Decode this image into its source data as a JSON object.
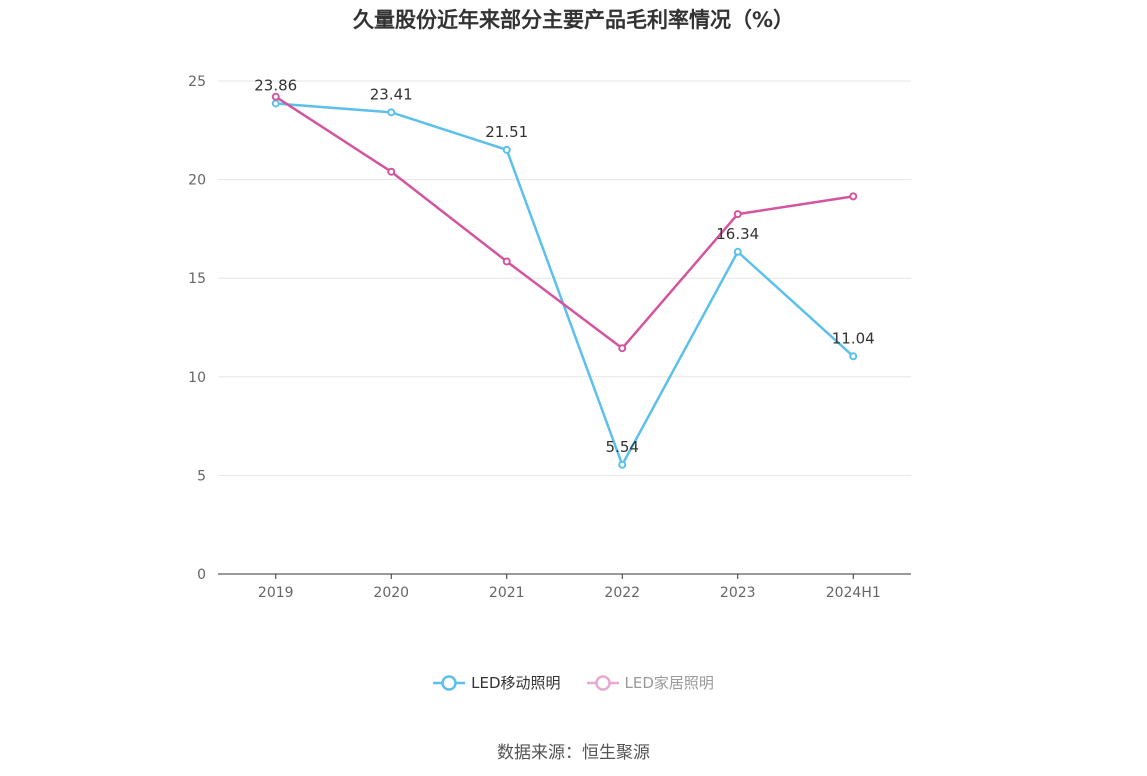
{
  "title": "久量股份近年来部分主要产品毛利率情况（%）",
  "source": "数据来源：恒生聚源",
  "colors": {
    "series1": "#5bc0eb",
    "series2": "#d4559f",
    "grid": "#e6e6e6",
    "axis": "#333333",
    "tick": "#666666"
  },
  "chart_data": {
    "type": "line",
    "title": "久量股份近年来部分主要产品毛利率情况（%）",
    "xlabel": "",
    "ylabel": "",
    "categories": [
      "2019",
      "2020",
      "2021",
      "2022",
      "2023",
      "2024H1"
    ],
    "ylim": [
      0,
      25
    ],
    "yticks": [
      0,
      5,
      10,
      15,
      20,
      25
    ],
    "grid": true,
    "legend_position": "bottom",
    "series": [
      {
        "name": "LED移动照明",
        "values": [
          23.86,
          23.41,
          21.51,
          5.54,
          16.34,
          11.04
        ],
        "labels": [
          "23.86",
          "23.41",
          "21.51",
          "5.54",
          "16.34",
          "11.04"
        ],
        "show_labels": true
      },
      {
        "name": "LED家居照明",
        "values": [
          24.2,
          20.4,
          15.85,
          11.45,
          18.25,
          19.15
        ],
        "show_labels": false
      }
    ]
  }
}
